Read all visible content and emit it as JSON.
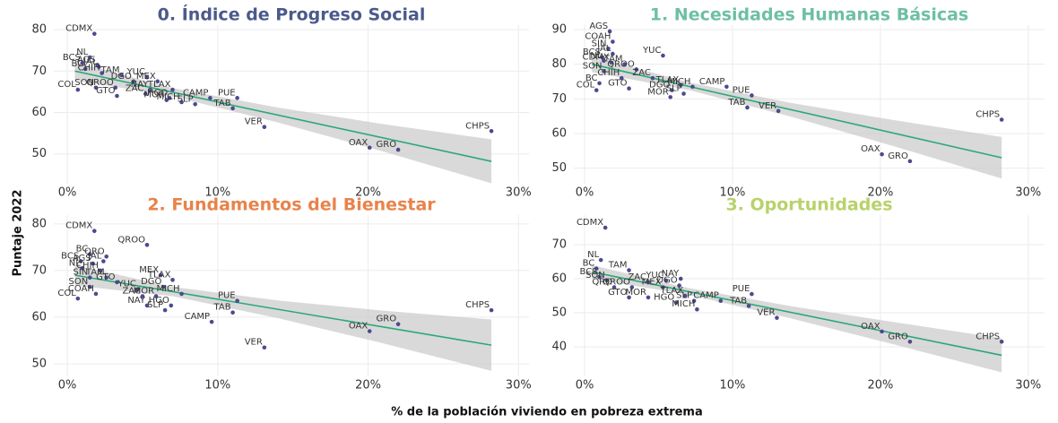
{
  "ylabel": "Puntaje 2022",
  "xlabel": "% de la población viviendo en pobreza extrema",
  "chart_data": [
    {
      "type": "scatter",
      "title": "0. Índice de Progreso Social",
      "color": "#4a5a8c",
      "point_color": "#4b4a8f",
      "fit_color": "#2aa87a",
      "band_color": "#cccccc",
      "grid": true,
      "labels": [
        "CDMX",
        "AGS",
        "NL",
        "JAL",
        "BCS",
        "BC",
        "CHIH",
        "TAM",
        "DGO",
        "YUC",
        "MEX",
        "SON",
        "COL",
        "QROO",
        "NAY",
        "TLAX",
        "GTO",
        "ZAC",
        "HGO",
        "MOR",
        "MICH",
        "SLP",
        "CAMP",
        "PUE",
        "TAB",
        "VER",
        "OAX",
        "GRO",
        "CHPS"
      ],
      "x": [
        1.8,
        2.0,
        1.5,
        2.1,
        1.0,
        1.2,
        2.3,
        3.6,
        4.4,
        5.3,
        6.0,
        1.9,
        0.7,
        3.2,
        5.5,
        7.0,
        3.3,
        5.2,
        6.8,
        6.6,
        7.6,
        8.5,
        9.5,
        11.3,
        11.0,
        13.1,
        20.1,
        22.0,
        28.2
      ],
      "y": [
        79,
        71.5,
        73.3,
        71,
        72,
        70.5,
        69.5,
        69,
        67.5,
        68.5,
        67.5,
        66,
        65.5,
        66,
        65.5,
        65.5,
        64,
        64.5,
        63.5,
        63,
        62.5,
        62,
        63.5,
        63.5,
        61,
        56.5,
        51.5,
        51,
        55.5
      ],
      "fit": {
        "x": [
          0.5,
          28.2
        ],
        "y": [
          70,
          48.2
        ]
      },
      "band": {
        "x": [
          0.5,
          7,
          14,
          21,
          28.2
        ],
        "upper": [
          72.2,
          65.9,
          61.2,
          57.2,
          53.5
        ],
        "lower": [
          67.8,
          63.9,
          57.6,
          50.6,
          42.9
        ]
      },
      "xlim": [
        -0.9,
        30.7
      ],
      "ylim": [
        42.8,
        81.1
      ],
      "xticks": [
        {
          "value": 0,
          "label": "0%"
        },
        {
          "value": 10,
          "label": "10%"
        },
        {
          "value": 20,
          "label": "20%"
        },
        {
          "value": 30,
          "label": "30%"
        }
      ],
      "yticks": [
        50,
        60,
        70,
        80
      ]
    },
    {
      "type": "scatter",
      "title": "1. Necesidades Humanas Básicas",
      "color": "#6dbfa6",
      "point_color": "#4b4a8f",
      "fit_color": "#2aa87a",
      "band_color": "#cccccc",
      "grid": true,
      "labels": [
        "AGS",
        "COAH",
        "SIN",
        "JAL",
        "BCS",
        "YUC",
        "NL",
        "CDMX",
        "TAM",
        "SON",
        "QROO",
        "CHIH",
        "BC",
        "ZAC",
        "COL",
        "GTO",
        "TLAX",
        "MICH",
        "DGO",
        "SLP",
        "MOR",
        "CAMP",
        "PUE",
        "TAB",
        "VER",
        "CHPS",
        "OAX",
        "GRO"
      ],
      "x": [
        1.7,
        1.9,
        1.6,
        1.9,
        1.2,
        5.3,
        1.3,
        1.8,
        2.7,
        1.3,
        3.5,
        2.5,
        1.0,
        4.6,
        0.8,
        3.0,
        6.5,
        7.3,
        5.9,
        6.7,
        5.8,
        9.6,
        11.3,
        11.0,
        13.1,
        28.2,
        20.1,
        22.0
      ],
      "y": [
        89.5,
        86.5,
        84.5,
        83,
        82,
        82.5,
        81,
        80.5,
        80,
        78,
        78.5,
        76,
        74.5,
        76,
        72.5,
        73,
        74,
        73.5,
        72.5,
        71.5,
        70.5,
        73.5,
        71,
        67.5,
        66.5,
        64,
        54,
        52
      ],
      "fit": {
        "x": [
          0.5,
          28.2
        ],
        "y": [
          80,
          53
        ]
      },
      "band": {
        "x": [
          0.5,
          7,
          14,
          21,
          28.2
        ],
        "upper": [
          82.3,
          74.8,
          68.8,
          63.8,
          59
        ],
        "lower": [
          77.7,
          72.6,
          64.8,
          56.2,
          47
        ]
      },
      "xlim": [
        -0.73,
        31.1
      ],
      "ylim": [
        45.5,
        91.3
      ],
      "xticks": [
        {
          "value": 0,
          "label": "0%"
        },
        {
          "value": 10,
          "label": "10%"
        },
        {
          "value": 20,
          "label": "20%"
        },
        {
          "value": 30,
          "label": "30%"
        }
      ],
      "yticks": [
        50,
        60,
        70,
        80,
        90
      ]
    },
    {
      "type": "scatter",
      "title": "2. Fundamentos del Bienestar",
      "color": "#e8834a",
      "point_color": "#4b4a8f",
      "fit_color": "#2aa87a",
      "band_color": "#cccccc",
      "grid": true,
      "labels": [
        "CDMX",
        "QROO",
        "BC",
        "QRO",
        "BCS",
        "JAL",
        "AGS",
        "NL",
        "CHIH",
        "MEX",
        "TLAX",
        "SIN",
        "TAM",
        "GTO",
        "DGO",
        "SON",
        "YUC",
        "MICH",
        "COAH",
        "ZAC",
        "MOR",
        "COL",
        "NAY",
        "HGO",
        "SLP",
        "PUE",
        "TAB",
        "CAMP",
        "GRO",
        "OAX",
        "CHPS",
        "VER"
      ],
      "x": [
        1.8,
        5.3,
        1.5,
        2.6,
        0.9,
        2.4,
        1.7,
        1.0,
        2.2,
        6.2,
        7.0,
        1.5,
        2.6,
        3.3,
        6.4,
        1.5,
        4.7,
        7.6,
        1.9,
        5.0,
        5.9,
        0.7,
        5.3,
        6.9,
        6.5,
        11.3,
        11.0,
        9.6,
        22.0,
        20.1,
        28.2,
        13.1
      ],
      "y": [
        78.5,
        75.5,
        73.5,
        73,
        72,
        72,
        71.5,
        70.5,
        70,
        69,
        68,
        68.5,
        68.5,
        67.5,
        66.5,
        66.5,
        66,
        65,
        65,
        64.5,
        64.5,
        64,
        62.5,
        62.5,
        61.5,
        63.5,
        61,
        59,
        58.5,
        57,
        61.5,
        53.5
      ],
      "fit": {
        "x": [
          0.5,
          28.2
        ],
        "y": [
          69,
          54
        ]
      },
      "band": {
        "x": [
          0.5,
          7,
          14,
          21,
          28.2
        ],
        "upper": [
          71.2,
          66.5,
          63.6,
          61.4,
          59.5
        ],
        "lower": [
          66.8,
          64.5,
          59.8,
          54.4,
          48.5
        ]
      },
      "xlim": [
        -0.9,
        30.7
      ],
      "ylim": [
        47.3,
        81.9
      ],
      "xticks": [
        {
          "value": 0,
          "label": "0%"
        },
        {
          "value": 10,
          "label": "10%"
        },
        {
          "value": 20,
          "label": "20%"
        },
        {
          "value": 30,
          "label": "30%"
        }
      ],
      "yticks": [
        50,
        60,
        70,
        80
      ]
    },
    {
      "type": "scatter",
      "title": "3. Oportunidades",
      "color": "#b8d26a",
      "point_color": "#4b4a8f",
      "fit_color": "#2aa87a",
      "band_color": "#cccccc",
      "grid": true,
      "labels": [
        "CDMX",
        "NL",
        "BC",
        "TAM",
        "BCS",
        "SON",
        "ZAC",
        "YUC",
        "NAY",
        "DGO",
        "QRO",
        "QROO",
        "MEX",
        "TLAX",
        "GTO",
        "MOR",
        "SLP",
        "CAMP",
        "HGO",
        "MICH",
        "PUE",
        "TAB",
        "VER",
        "OAX",
        "GRO",
        "CHPS"
      ],
      "x": [
        1.4,
        1.1,
        0.8,
        3.0,
        1.0,
        1.5,
        4.3,
        5.5,
        6.5,
        6.4,
        2.0,
        3.2,
        5.3,
        6.8,
        3.0,
        4.3,
        7.4,
        9.2,
        6.2,
        7.6,
        11.3,
        11.1,
        13.0,
        20.1,
        22.0,
        28.2
      ],
      "y": [
        75,
        65.5,
        63,
        62.5,
        60.5,
        59.5,
        59,
        59.5,
        60,
        58,
        57.5,
        57.5,
        57.5,
        55,
        54.5,
        54.5,
        53.5,
        53.5,
        53,
        51,
        55.5,
        52,
        48.5,
        44.5,
        41.5,
        41.5
      ],
      "fit": {
        "x": [
          0.5,
          28.2
        ],
        "y": [
          62,
          37.5
        ]
      },
      "band": {
        "x": [
          0.5,
          7,
          14,
          21,
          28.2
        ],
        "upper": [
          64,
          57.3,
          51.9,
          47.2,
          42.5
        ],
        "lower": [
          60,
          55.3,
          48.3,
          40.6,
          32.5
        ]
      },
      "xlim": [
        -0.73,
        31.1
      ],
      "ylim": [
        31.3,
        78.7
      ],
      "xticks": [
        {
          "value": 0,
          "label": "0%"
        },
        {
          "value": 10,
          "label": "10%"
        },
        {
          "value": 20,
          "label": "20%"
        },
        {
          "value": 30,
          "label": "30%"
        }
      ],
      "yticks": [
        40,
        50,
        60,
        70
      ]
    }
  ]
}
